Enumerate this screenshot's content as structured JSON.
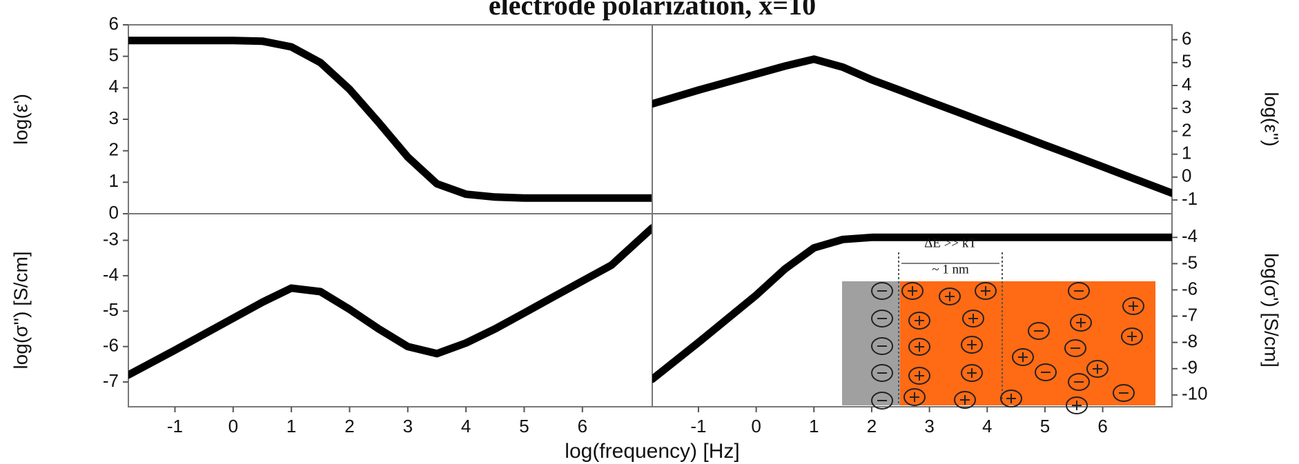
{
  "title": "electrode polarization, x=10",
  "xlabel": "log(frequency) [Hz]",
  "chart_data": [
    {
      "type": "line",
      "ylabel": "log(ε')",
      "yaxis": "left",
      "color": "#000000",
      "x": [
        -1.8,
        -1,
        -0.5,
        0,
        0.5,
        1,
        1.5,
        2,
        2.5,
        3,
        3.5,
        4,
        4.5,
        5,
        5.5,
        6,
        6.5,
        7.2
      ],
      "values": [
        5.5,
        5.5,
        5.5,
        5.5,
        5.48,
        5.3,
        4.8,
        3.95,
        2.9,
        1.8,
        0.95,
        0.62,
        0.53,
        0.5,
        0.5,
        0.5,
        0.5,
        0.5
      ],
      "xlim": [
        -1.8,
        7.2
      ],
      "ylim": [
        0,
        6
      ],
      "yticks": [
        0,
        1,
        2,
        3,
        4,
        5,
        6
      ]
    },
    {
      "type": "line",
      "ylabel": "log(ε'')",
      "yaxis": "right",
      "color": "#000000",
      "x": [
        -1.8,
        -1,
        -0.5,
        0,
        0.5,
        1,
        1.5,
        2,
        2.5,
        3,
        3.5,
        4,
        4.5,
        5,
        5.5,
        6,
        6.5,
        7.2
      ],
      "values": [
        3.2,
        3.8,
        4.15,
        4.5,
        4.85,
        5.15,
        4.8,
        4.25,
        3.78,
        3.3,
        2.83,
        2.35,
        1.88,
        1.4,
        0.93,
        0.45,
        -0.03,
        -0.7
      ],
      "xlim": [
        -1.8,
        7.2
      ],
      "ylim": [
        -1.6,
        6.65
      ],
      "yticks": [
        -1,
        0,
        1,
        2,
        3,
        4,
        5,
        6
      ]
    },
    {
      "type": "line",
      "ylabel": "log(σ'') [S/cm]",
      "yaxis": "left",
      "color": "#000000",
      "x": [
        -1.8,
        -1,
        -0.5,
        0,
        0.5,
        1,
        1.5,
        2,
        2.5,
        3,
        3.5,
        4,
        4.5,
        5,
        5.5,
        6,
        6.5,
        7.2
      ],
      "values": [
        -6.8,
        -6.1,
        -5.65,
        -5.2,
        -4.75,
        -4.35,
        -4.45,
        -4.95,
        -5.5,
        -6.0,
        -6.2,
        -5.9,
        -5.5,
        -5.05,
        -4.6,
        -4.15,
        -3.7,
        -2.65
      ],
      "xlim": [
        -1.8,
        7.2
      ],
      "ylim": [
        -7.7,
        -2.25
      ],
      "yticks": [
        -7,
        -6,
        -5,
        -4,
        -3
      ],
      "xticks": [
        -1,
        0,
        1,
        2,
        3,
        4,
        5,
        6
      ]
    },
    {
      "type": "line",
      "ylabel": "log(σ') [S/cm]",
      "yaxis": "right",
      "color": "#000000",
      "x": [
        -1.8,
        -1,
        -0.5,
        0,
        0.5,
        1,
        1.5,
        2,
        2.5,
        3,
        3.5,
        4,
        4.5,
        5,
        5.5,
        6,
        6.5,
        7.2
      ],
      "values": [
        -9.4,
        -8.0,
        -7.1,
        -6.2,
        -5.2,
        -4.4,
        -4.08,
        -4.0,
        -4.0,
        -4.0,
        -4.0,
        -4.0,
        -4.0,
        -4.0,
        -4.0,
        -4.0,
        -4.0,
        -4.0
      ],
      "xlim": [
        -1.8,
        7.2
      ],
      "ylim": [
        -10.45,
        -3.1
      ],
      "yticks": [
        -10,
        -9,
        -8,
        -7,
        -6,
        -5,
        -4
      ],
      "xticks": [
        -1,
        0,
        1,
        2,
        3,
        4,
        5,
        6
      ]
    }
  ],
  "inset": {
    "energy_label": "ΔE >> kT",
    "width_label": "~ 1 nm"
  }
}
